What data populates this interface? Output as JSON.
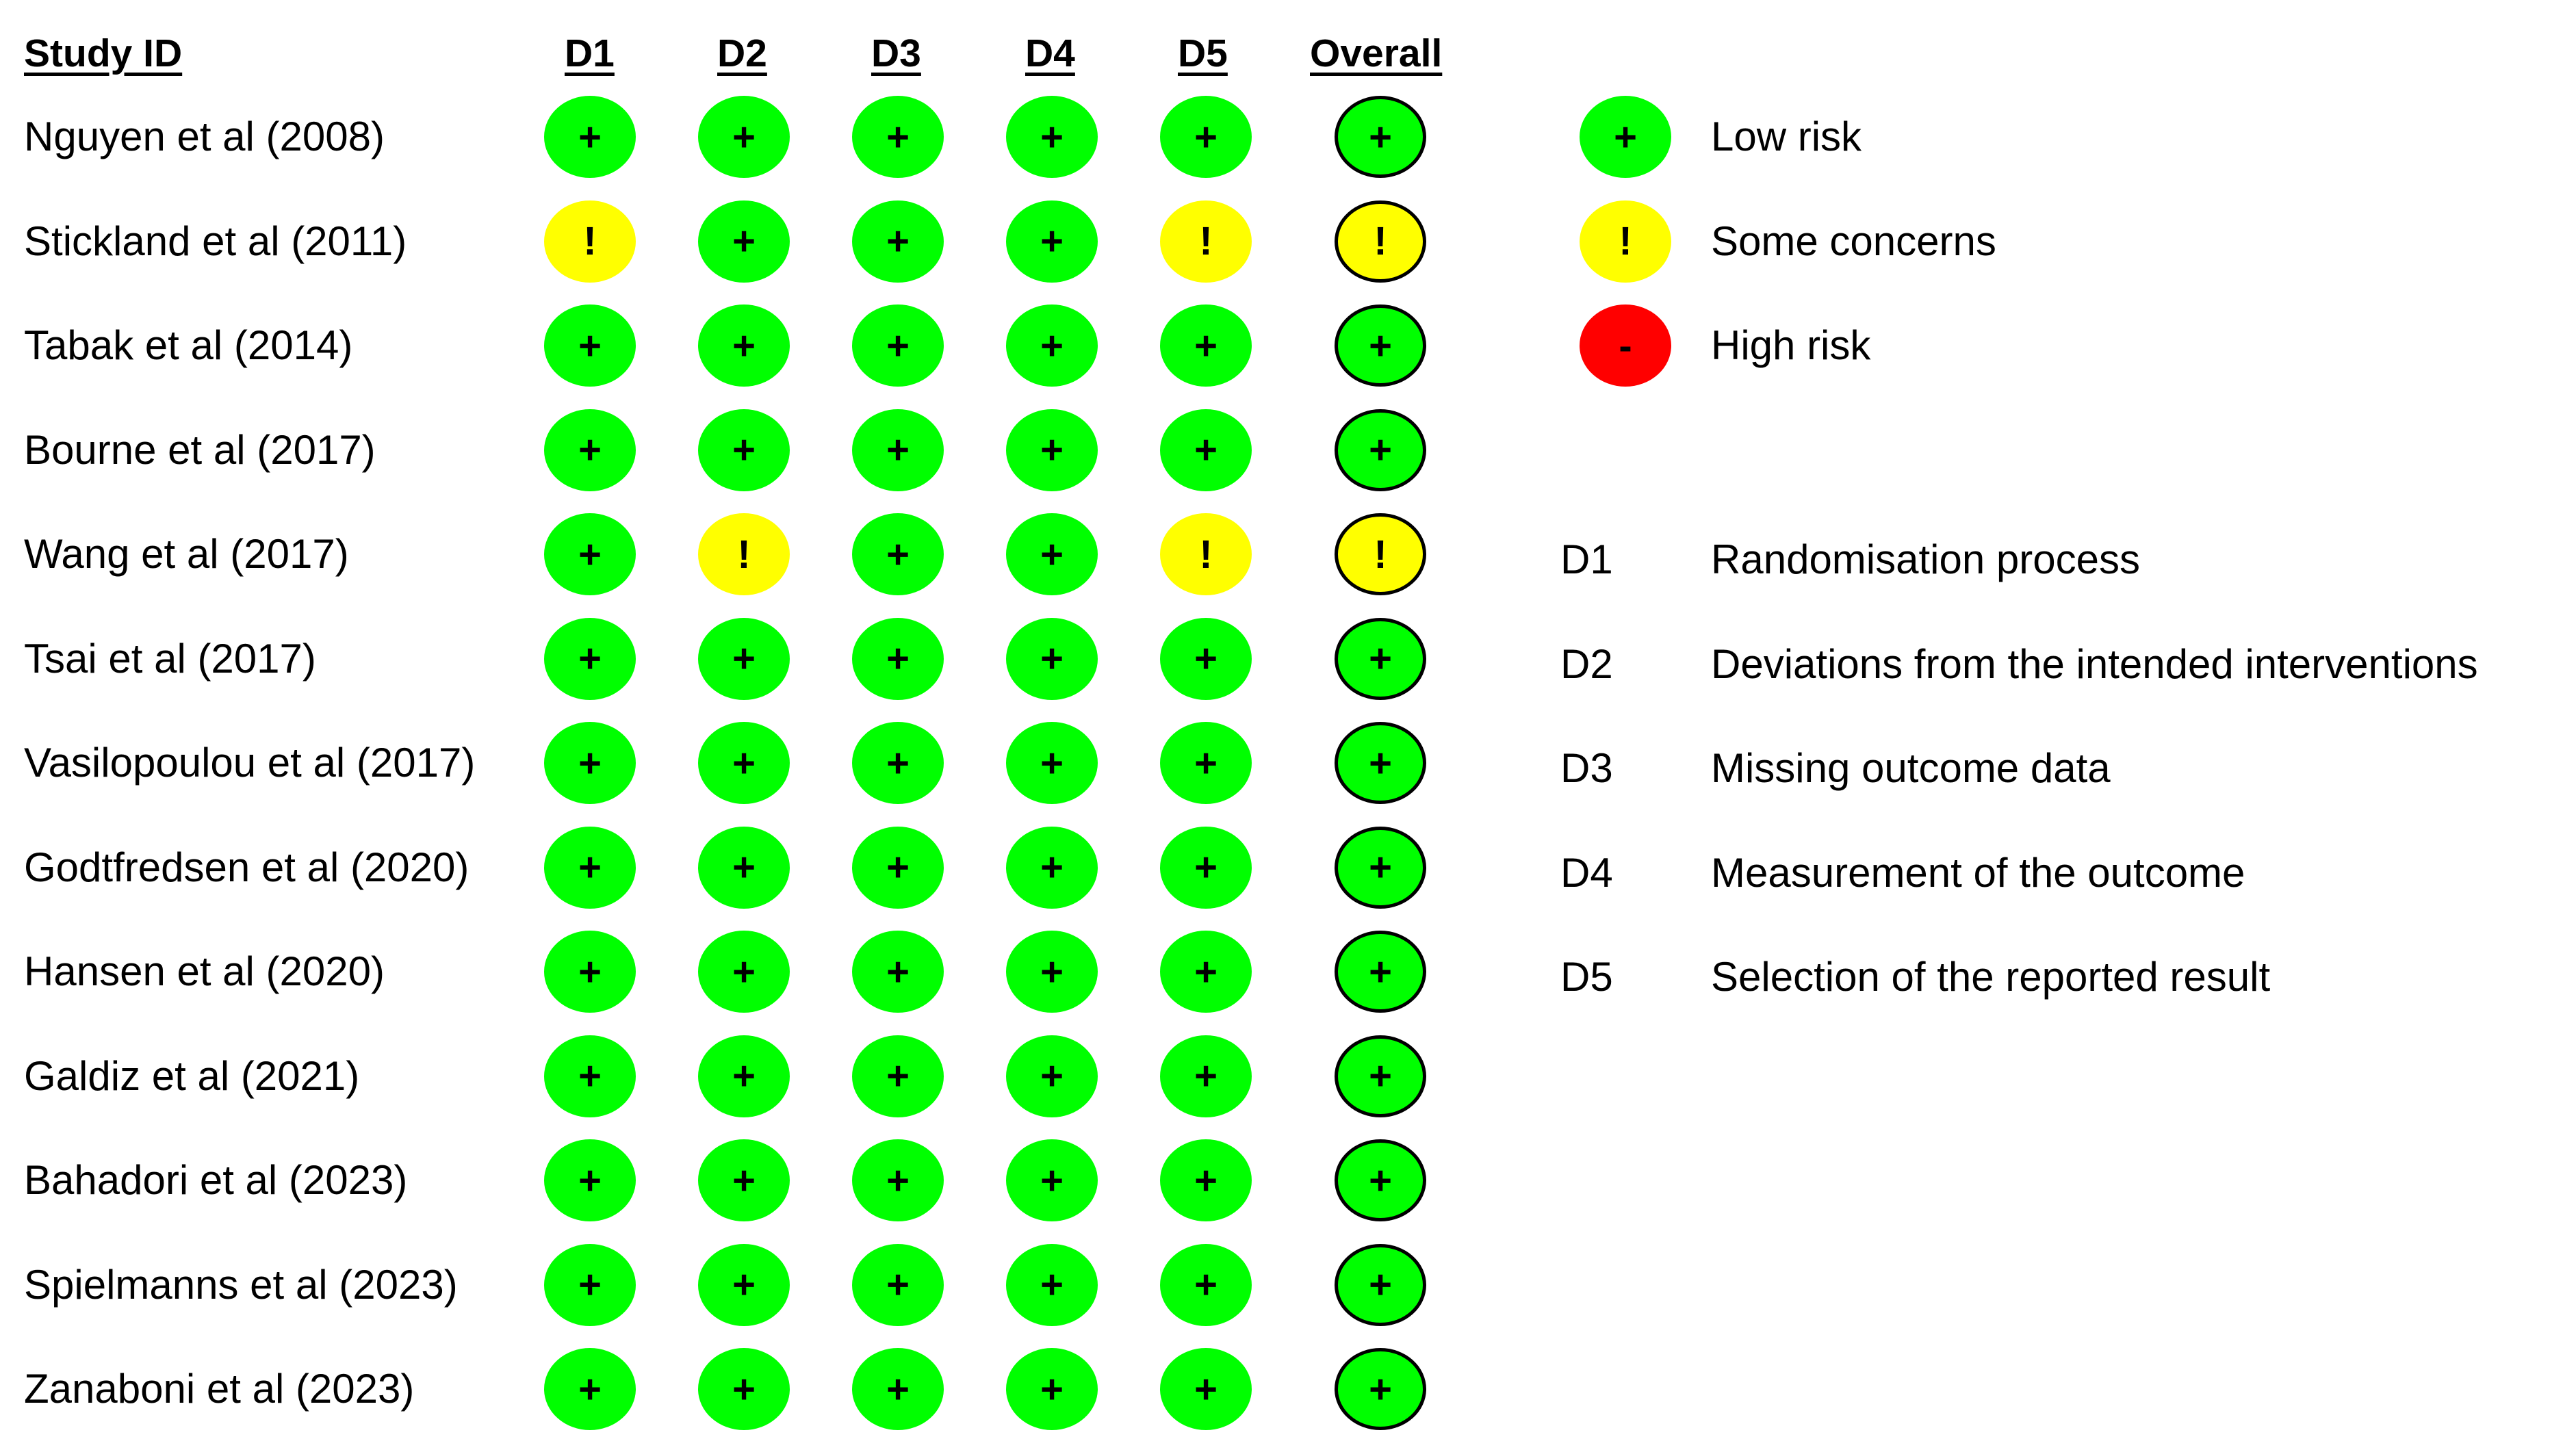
{
  "headers": {
    "study": "Study ID",
    "domains": [
      "D1",
      "D2",
      "D3",
      "D4",
      "D5"
    ],
    "overall": "Overall"
  },
  "symbols": {
    "low": "+",
    "some": "!",
    "high": "-"
  },
  "colors": {
    "low": "#00ff00",
    "some": "#ffff00",
    "high": "#ff0000"
  },
  "studies": [
    {
      "name": "Nguyen et al (2008)",
      "ratings": [
        "low",
        "low",
        "low",
        "low",
        "low"
      ],
      "overall": "low"
    },
    {
      "name": "Stickland et al (2011)",
      "ratings": [
        "some",
        "low",
        "low",
        "low",
        "some"
      ],
      "overall": "some"
    },
    {
      "name": "Tabak et al (2014)",
      "ratings": [
        "low",
        "low",
        "low",
        "low",
        "low"
      ],
      "overall": "low"
    },
    {
      "name": "Bourne et al (2017)",
      "ratings": [
        "low",
        "low",
        "low",
        "low",
        "low"
      ],
      "overall": "low"
    },
    {
      "name": "Wang et al (2017)",
      "ratings": [
        "low",
        "some",
        "low",
        "low",
        "some"
      ],
      "overall": "some"
    },
    {
      "name": "Tsai et al (2017)",
      "ratings": [
        "low",
        "low",
        "low",
        "low",
        "low"
      ],
      "overall": "low"
    },
    {
      "name": "Vasilopoulou et al (2017)",
      "ratings": [
        "low",
        "low",
        "low",
        "low",
        "low"
      ],
      "overall": "low"
    },
    {
      "name": "Godtfredsen et al (2020)",
      "ratings": [
        "low",
        "low",
        "low",
        "low",
        "low"
      ],
      "overall": "low"
    },
    {
      "name": "Hansen et al (2020)",
      "ratings": [
        "low",
        "low",
        "low",
        "low",
        "low"
      ],
      "overall": "low"
    },
    {
      "name": "Galdiz et al (2021)",
      "ratings": [
        "low",
        "low",
        "low",
        "low",
        "low"
      ],
      "overall": "low"
    },
    {
      "name": "Bahadori et al (2023)",
      "ratings": [
        "low",
        "low",
        "low",
        "low",
        "low"
      ],
      "overall": "low"
    },
    {
      "name": "Spielmanns et al (2023)",
      "ratings": [
        "low",
        "low",
        "low",
        "low",
        "low"
      ],
      "overall": "low"
    },
    {
      "name": "Zanaboni et al (2023)",
      "ratings": [
        "low",
        "low",
        "low",
        "low",
        "low"
      ],
      "overall": "low"
    }
  ],
  "risk_legend": [
    {
      "level": "low",
      "label": "Low risk"
    },
    {
      "level": "some",
      "label": "Some concerns"
    },
    {
      "level": "high",
      "label": "High risk"
    }
  ],
  "domain_legend": [
    {
      "code": "D1",
      "label": "Randomisation process"
    },
    {
      "code": "D2",
      "label": "Deviations from the intended interventions"
    },
    {
      "code": "D3",
      "label": "Missing outcome data"
    },
    {
      "code": "D4",
      "label": "Measurement of the outcome"
    },
    {
      "code": "D5",
      "label": "Selection of the reported result"
    }
  ]
}
